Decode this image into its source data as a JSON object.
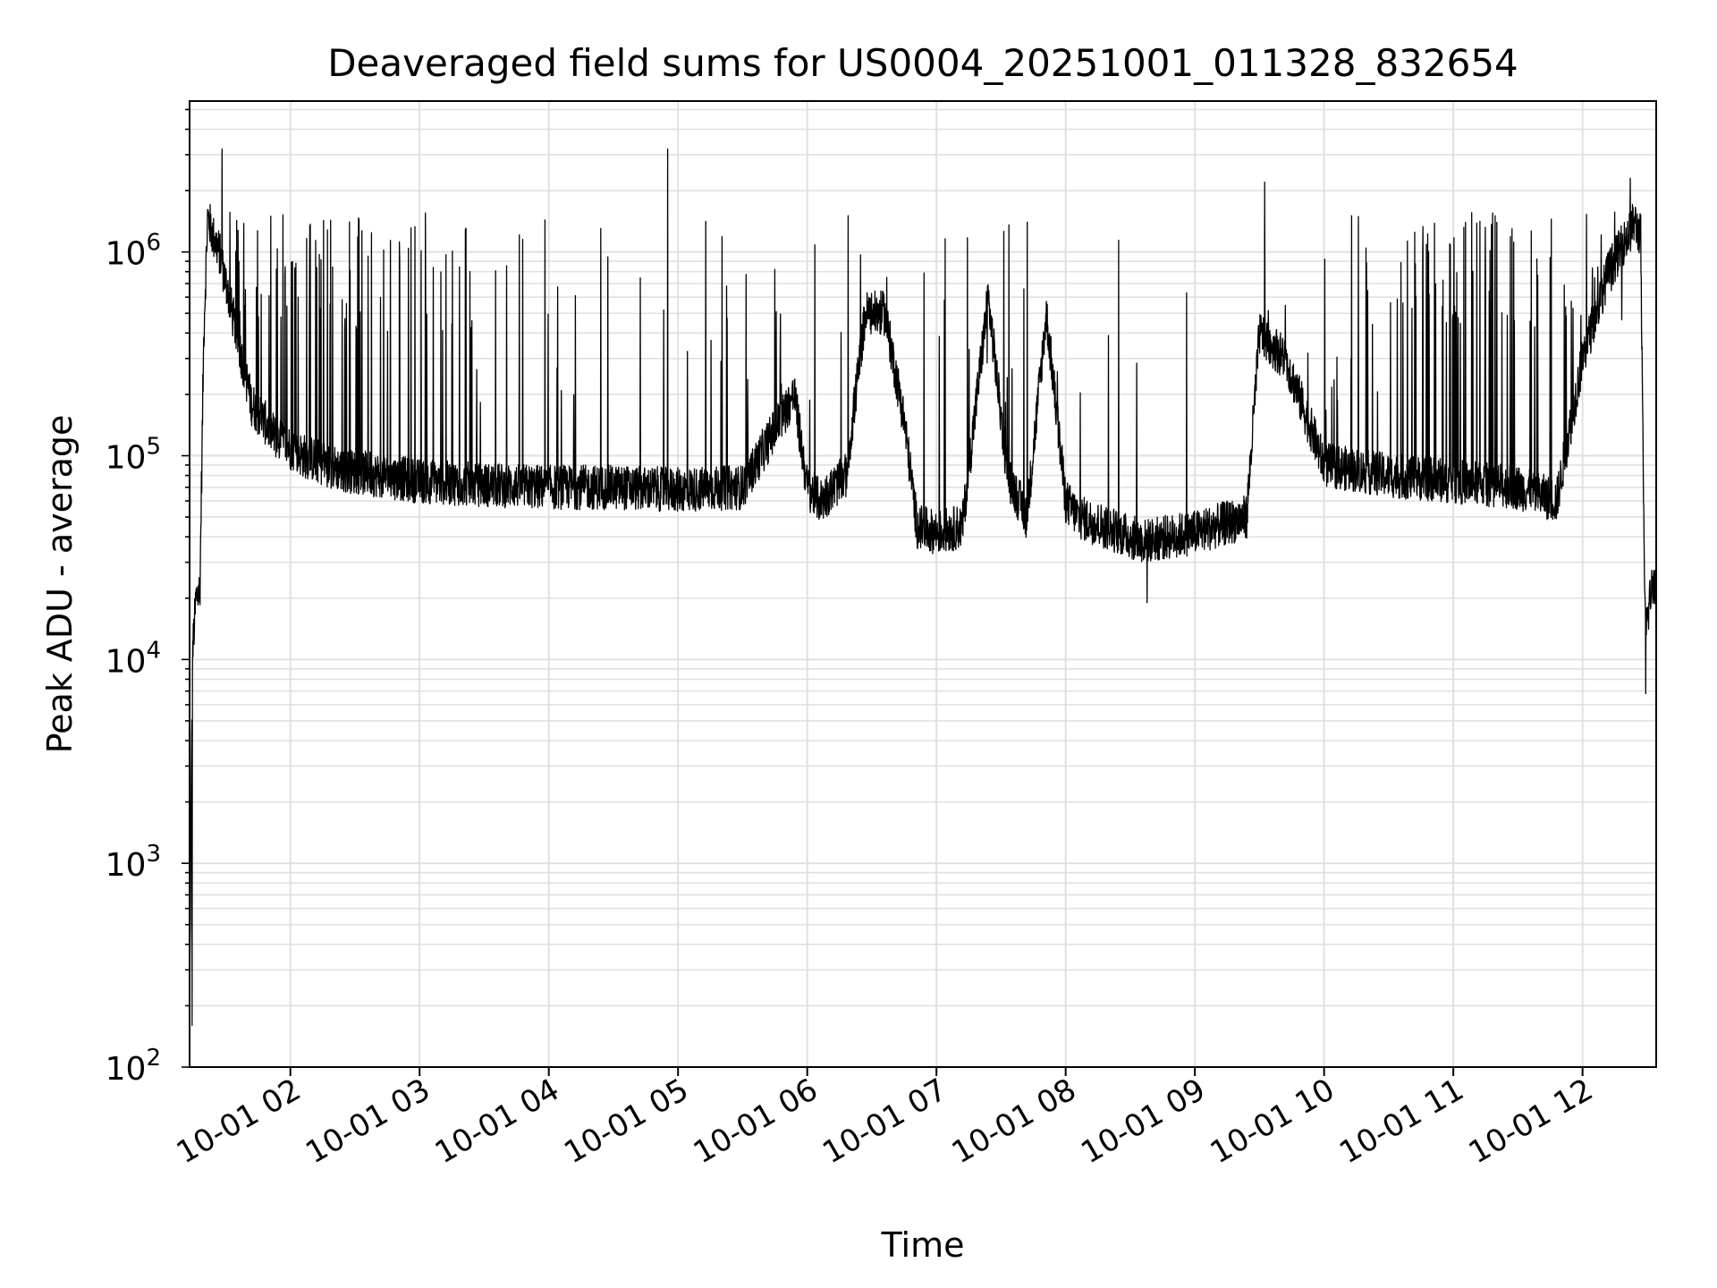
{
  "chart_data": {
    "type": "line",
    "title": "Deaveraged field sums for US0004_20251001_011328_832654",
    "xlabel": "Time",
    "ylabel": "Peak ADU - average",
    "yscale": "log",
    "ylim": [
      100,
      5500000
    ],
    "xlim_hours": [
      1.22,
      12.57
    ],
    "grid": true,
    "line_color": "#000000",
    "grid_color": "#e0e0e0",
    "x_ticks": [
      {
        "hour": 2,
        "label": "10-01 02"
      },
      {
        "hour": 3,
        "label": "10-01 03"
      },
      {
        "hour": 4,
        "label": "10-01 04"
      },
      {
        "hour": 5,
        "label": "10-01 05"
      },
      {
        "hour": 6,
        "label": "10-01 06"
      },
      {
        "hour": 7,
        "label": "10-01 07"
      },
      {
        "hour": 8,
        "label": "10-01 08"
      },
      {
        "hour": 9,
        "label": "10-01 09"
      },
      {
        "hour": 10,
        "label": "10-01 10"
      },
      {
        "hour": 11,
        "label": "10-01 11"
      },
      {
        "hour": 12,
        "label": "10-01 12"
      }
    ],
    "y_ticks": [
      {
        "value": 100,
        "base": "10",
        "exp": "2"
      },
      {
        "value": 1000,
        "base": "10",
        "exp": "3"
      },
      {
        "value": 10000,
        "base": "10",
        "exp": "4"
      },
      {
        "value": 100000,
        "base": "10",
        "exp": "5"
      },
      {
        "value": 1000000,
        "base": "10",
        "exp": "6"
      }
    ],
    "series": [
      {
        "name": "Deaveraged field sum",
        "baseline_hours": [
          1.22,
          1.24,
          1.27,
          1.3,
          1.33,
          1.36,
          1.4,
          1.45,
          1.55,
          1.7,
          1.9,
          2.1,
          2.4,
          2.7,
          3.0,
          3.5,
          4.0,
          4.5,
          5.0,
          5.5,
          5.9,
          6.0,
          6.1,
          6.3,
          6.45,
          6.6,
          6.75,
          6.85,
          7.0,
          7.2,
          7.4,
          7.55,
          7.7,
          7.85,
          8.0,
          8.1,
          8.3,
          8.5,
          8.6,
          8.8,
          9.0,
          9.4,
          9.5,
          9.7,
          10.0,
          10.5,
          11.0,
          11.5,
          11.8,
          12.0,
          12.2,
          12.35,
          12.4,
          12.45,
          12.48,
          12.5,
          12.53,
          12.55,
          12.57
        ],
        "baseline_values": [
          150,
          10000,
          20000,
          22000,
          400000,
          1500000,
          1200000,
          1000000,
          500000,
          180000,
          120000,
          100000,
          85000,
          80000,
          75000,
          72000,
          70000,
          70000,
          68000,
          70000,
          200000,
          70000,
          60000,
          80000,
          500000,
          500000,
          150000,
          45000,
          42000,
          45000,
          600000,
          80000,
          50000,
          500000,
          60000,
          50000,
          45000,
          40000,
          38000,
          40000,
          42000,
          50000,
          400000,
          300000,
          90000,
          80000,
          75000,
          70000,
          60000,
          300000,
          800000,
          1200000,
          1400000,
          1200000,
          20000,
          15000,
          22000,
          25000,
          22000
        ],
        "spike_peaks": [
          {
            "hour": 1.47,
            "value": 3200000
          },
          {
            "hour": 4.92,
            "value": 3200000
          },
          {
            "hour": 9.54,
            "value": 2200000
          },
          {
            "hour": 12.37,
            "value": 2300000
          }
        ],
        "troughs": [
          {
            "hour": 1.24,
            "value": 160
          },
          {
            "hour": 8.63,
            "value": 19000
          },
          {
            "hour": 12.49,
            "value": 6800
          }
        ]
      }
    ]
  }
}
